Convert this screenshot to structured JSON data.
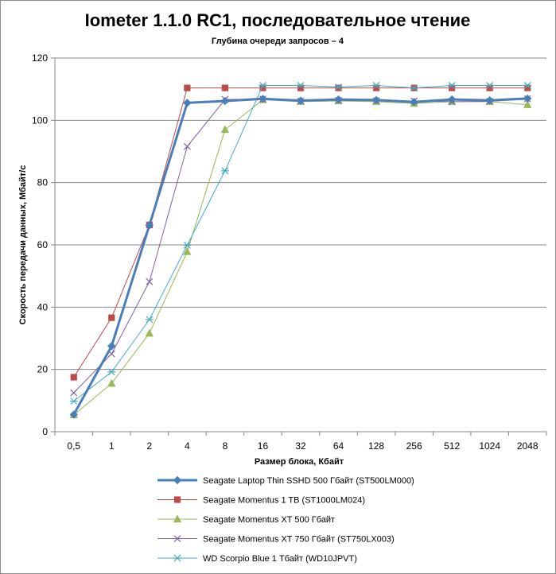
{
  "chart_data": {
    "type": "line",
    "title": "Iometer 1.1.0 RC1, последовательное чтение",
    "subtitle": "Глубина очереди запросов – 4",
    "xlabel": "Размер блока, Кбайт",
    "ylabel": "Скорость передачи данных, Мбайт/с",
    "ylim": [
      0,
      120
    ],
    "yticks": [
      0,
      20,
      40,
      60,
      80,
      100,
      120
    ],
    "grid": "horizontal",
    "legend_position": "bottom",
    "categories": [
      "0,5",
      "1",
      "2",
      "4",
      "8",
      "16",
      "32",
      "64",
      "128",
      "256",
      "512",
      "1024",
      "2048"
    ],
    "series": [
      {
        "name": "Seagate Laptop Thin SSHD 500 Гбайт (ST500LM000)",
        "color": "#4a7ebb",
        "marker": "diamond",
        "emphasis": true,
        "values": [
          5.5,
          27.5,
          66.3,
          105.6,
          106.2,
          106.9,
          106.3,
          106.7,
          106.5,
          105.9,
          106.7,
          106.4,
          107.0
        ]
      },
      {
        "name": "Seagate Momentus 1 TB (ST1000LM024)",
        "color": "#be4b48",
        "marker": "square",
        "values": [
          17.5,
          36.6,
          66.4,
          110.4,
          110.4,
          110.4,
          110.4,
          110.4,
          110.4,
          110.4,
          110.4,
          110.4,
          110.4
        ]
      },
      {
        "name": "Seagate Momentus XT 500 Гбайт",
        "color": "#98b954",
        "marker": "triangle",
        "values": [
          5.4,
          15.5,
          31.6,
          57.8,
          97.0,
          106.6,
          106.0,
          106.2,
          106.0,
          105.4,
          106.0,
          106.0,
          105.0
        ]
      },
      {
        "name": "Seagate Momentus XT 750 Гбайт (ST750LX003)",
        "color": "#7d60a0",
        "marker": "x",
        "values": [
          12.5,
          25.0,
          48.2,
          91.6,
          106.7,
          106.8,
          106.2,
          106.4,
          106.3,
          106.2,
          106.0,
          106.1,
          106.9
        ]
      },
      {
        "name": "WD Scorpio Blue 1 Тбайт (WD10JPVT)",
        "color": "#46aac5",
        "marker": "star",
        "values": [
          9.8,
          19.2,
          36.0,
          59.9,
          83.8,
          111.2,
          111.2,
          110.7,
          111.2,
          110.4,
          111.2,
          111.2,
          111.2
        ]
      }
    ]
  }
}
